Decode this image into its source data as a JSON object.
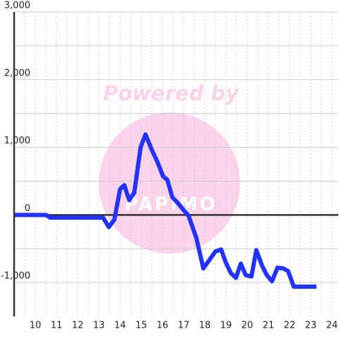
{
  "chart_data": {
    "type": "line",
    "watermark": "Powered by",
    "logo": "PAPIMO",
    "x": [
      9,
      10.5,
      10.7,
      13.2,
      13.47,
      13.73,
      14,
      14.2,
      14.43,
      14.67,
      14.97,
      15.2,
      15.5,
      15.77,
      16.03,
      16.23,
      16.47,
      16.8,
      17.03,
      17.23,
      17.6,
      17.93,
      18.23,
      18.5,
      18.77,
      19,
      19.23,
      19.47,
      19.7,
      19.93,
      20.2,
      20.43,
      20.7,
      20.93,
      21.17,
      21.43,
      21.7,
      21.93,
      22.2,
      23.27
    ],
    "values": [
      0,
      0,
      -40,
      -40,
      -180,
      -70,
      380,
      440,
      220,
      330,
      1000,
      1190,
      960,
      780,
      570,
      520,
      260,
      150,
      60,
      -10,
      -340,
      -790,
      -660,
      -540,
      -510,
      -710,
      -860,
      -930,
      -720,
      -890,
      -910,
      -520,
      -750,
      -890,
      -980,
      -780,
      -790,
      -830,
      -1060,
      -1060
    ],
    "color": "#2233ff",
    "xlim": [
      9,
      24.3
    ],
    "ylim": [
      -1500,
      3000
    ],
    "xticks": [
      10,
      11,
      12,
      13,
      14,
      15,
      16,
      17,
      18,
      19,
      20,
      21,
      22,
      23,
      24
    ],
    "xminor": [
      9.5,
      10.5,
      11.5,
      12.5,
      13.5,
      14.5,
      15.5,
      16.5,
      17.5,
      18.5,
      19.5,
      20.5,
      21.5,
      22.5,
      23.5
    ],
    "yticks": [
      {
        "value": -1000,
        "label": "-1,000"
      },
      0,
      {
        "value": 1000,
        "label": "1,000"
      },
      {
        "value": 2000,
        "label": "2,000"
      },
      {
        "value": 3000,
        "label": "3,000"
      }
    ],
    "yminor": [
      -500,
      500,
      1500,
      2500
    ],
    "grid": true
  }
}
